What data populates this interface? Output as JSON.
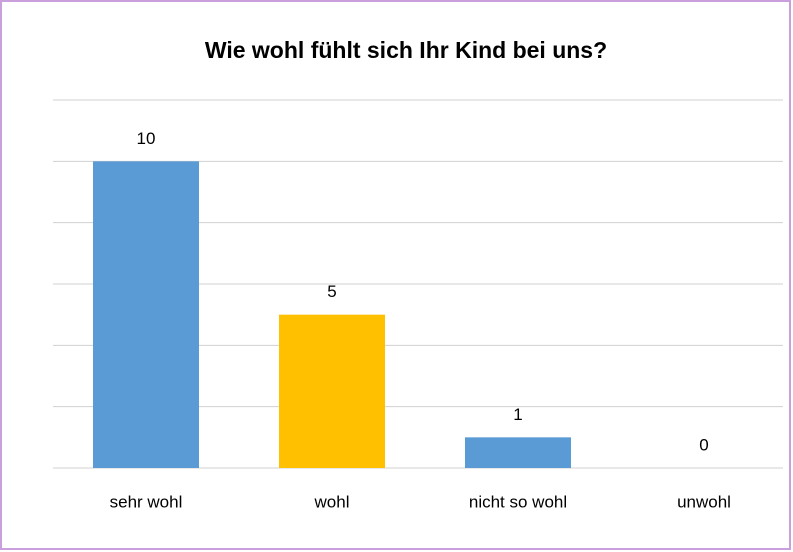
{
  "chart_data": {
    "type": "bar",
    "title": "Wie wohl fühlt sich Ihr Kind bei uns?",
    "categories": [
      "sehr wohl",
      "wohl",
      "nicht so wohl",
      "unwohl"
    ],
    "values": [
      10,
      5,
      1,
      0
    ],
    "colors": [
      "#5b9bd5",
      "#ffc000",
      "#5b9bd5",
      "#5b9bd5"
    ],
    "ylim": [
      0,
      12
    ],
    "yticks": [
      0,
      2,
      4,
      6,
      8,
      10,
      12
    ],
    "grid": true
  }
}
